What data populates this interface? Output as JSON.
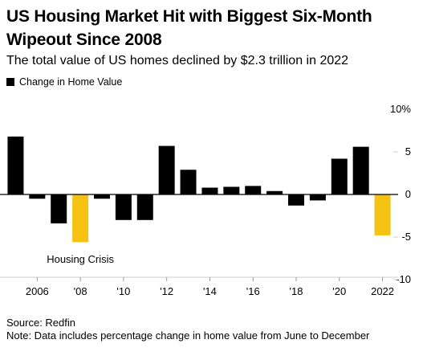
{
  "chart_data": {
    "type": "bar",
    "title": "US Housing Market Hit with Biggest Six-Month Wipeout Since 2008",
    "subtitle": "The total value of US homes declined by $2.3 trillion in 2022",
    "legend": [
      "Change in Home Value"
    ],
    "legend_position": "top-left",
    "series": [
      {
        "name": "Change in Home Value",
        "values": [
          6.8,
          -0.5,
          -3.4,
          -5.6,
          -0.5,
          -3.0,
          -3.0,
          5.7,
          2.9,
          0.8,
          0.9,
          1.0,
          0.4,
          -1.3,
          -0.7,
          4.2,
          5.6,
          -4.8
        ]
      }
    ],
    "x": [
      2005,
      2006,
      2007,
      2008,
      2009,
      2010,
      2011,
      2012,
      2013,
      2014,
      2015,
      2016,
      2017,
      2018,
      2019,
      2020,
      2021,
      2022
    ],
    "highlight_years": [
      2008,
      2022
    ],
    "colors": {
      "default": "#000000",
      "highlight": "#f5c211",
      "grid": "#cccccc"
    },
    "ylim": [
      -10,
      10
    ],
    "ylabel": "",
    "xlabel": "",
    "y_axis_side": "right",
    "y_ticks": [
      10,
      5,
      0,
      -5,
      -10
    ],
    "y_tick_labels": [
      "10%",
      "5",
      "0",
      "-5",
      "-10"
    ],
    "x_ticks": [
      2006,
      2008,
      2010,
      2012,
      2014,
      2016,
      2018,
      2020,
      2022
    ],
    "x_tick_labels": [
      "2006",
      "'08",
      "'10",
      "'12",
      "'14",
      "'16",
      "'18",
      "'20",
      "2022"
    ],
    "annotations": [
      {
        "text": "Housing Crisis",
        "x": 2008
      }
    ],
    "grid": false
  },
  "source": "Source: Redfin",
  "note": "Note: Data includes percentage change in home value from June to December"
}
